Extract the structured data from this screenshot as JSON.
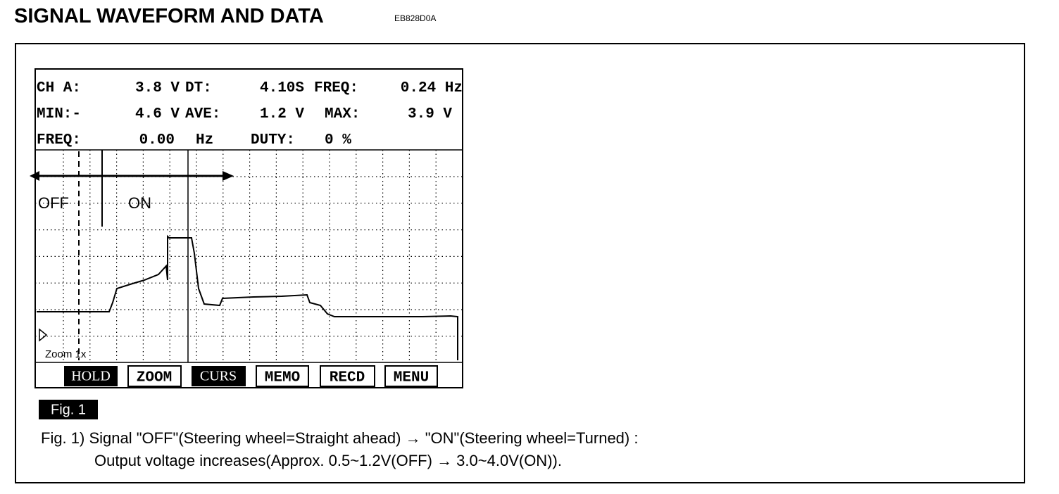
{
  "header": {
    "title": "SIGNAL WAVEFORM AND DATA",
    "code": "EB828D0A"
  },
  "scope": {
    "readout": [
      [
        "CH A:",
        "3.8 V",
        "DT:",
        "4.10S",
        "FREQ:",
        "0.24 Hz"
      ],
      [
        "MIN:-",
        "4.6 V",
        "AVE:",
        "1.2 V",
        "MAX:",
        "3.9 V"
      ],
      [
        "FREQ:",
        "0.00",
        "Hz",
        "DUTY:",
        "0 %"
      ]
    ],
    "labels": {
      "off": "OFF",
      "on": "ON",
      "zoom": "Zoom 1x"
    },
    "buttons": [
      "HOLD",
      "ZOOM",
      "CURS",
      "MEMO",
      "RECD",
      "MENU"
    ]
  },
  "figure": {
    "tag": "Fig. 1",
    "caption": [
      "Fig. 1) Signal \"OFF\"(Steering wheel=Straight ahead) → \"ON\"(Steering wheel=Turned) :",
      "Output voltage increases(Approx. 0.5~1.2V(OFF) → 3.0~4.0V(ON))."
    ]
  }
}
